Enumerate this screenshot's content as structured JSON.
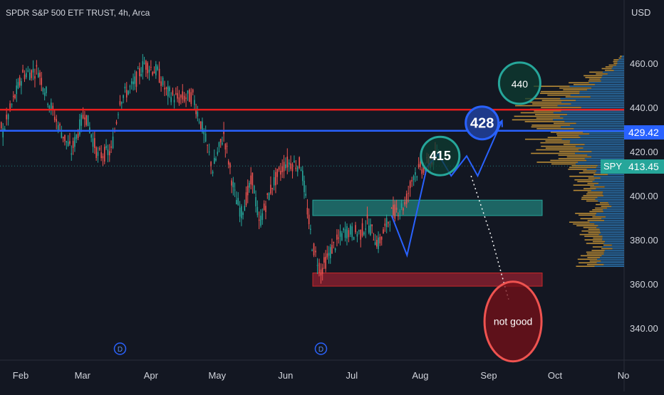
{
  "header": {
    "title": "SPDR S&P 500 ETF TRUST, 4h, Arca",
    "currency": "USD"
  },
  "price_badges": {
    "blue_level": "429.42",
    "last_price": "413.45",
    "symbol": "SPY"
  },
  "annotations": {
    "circle_440": "440",
    "circle_428": "428",
    "circle_415": "415",
    "not_good": "not good"
  },
  "dividend_marker": "D",
  "colors": {
    "background": "#131722",
    "up": "#26a69a",
    "down": "#ef5350",
    "red_line": "#e91e1e",
    "blue_line": "#2962ff",
    "profile_up": "#2f7fbf",
    "profile_down": "#d6a03a",
    "path": "#2962ff"
  },
  "chart_data": {
    "type": "candlestick",
    "title": "SPDR S&P 500 ETF TRUST, 4h, Arca",
    "ylabel": "USD",
    "ylim": [
      326,
      475
    ],
    "y_ticks": [
      340,
      360,
      380,
      400,
      420,
      440,
      460
    ],
    "y_tick_labels": [
      "340.00",
      "360.00",
      "380.00",
      "400.00",
      "420.00",
      "440.00",
      "460.00"
    ],
    "x_ticks": [
      "Feb",
      "Mar",
      "Apr",
      "May",
      "Jun",
      "Jul",
      "Aug",
      "Sep",
      "Oct",
      "No"
    ],
    "x_tick_dates": [
      "2022-02-01",
      "2022-03-01",
      "2022-04-01",
      "2022-05-01",
      "2022-06-01",
      "2022-07-01",
      "2022-08-01",
      "2022-09-01",
      "2022-10-01",
      "2022-11-01"
    ],
    "grid": false,
    "close_path": [
      [
        "2022-01-20",
        440
      ],
      [
        "2022-01-24",
        429
      ],
      [
        "2022-01-28",
        441
      ],
      [
        "2022-02-02",
        455
      ],
      [
        "2022-02-09",
        457
      ],
      [
        "2022-02-14",
        442
      ],
      [
        "2022-02-18",
        432
      ],
      [
        "2022-02-24",
        420
      ],
      [
        "2022-03-02",
        438
      ],
      [
        "2022-03-08",
        418
      ],
      [
        "2022-03-14",
        420
      ],
      [
        "2022-03-18",
        444
      ],
      [
        "2022-03-24",
        450
      ],
      [
        "2022-03-29",
        460
      ],
      [
        "2022-04-04",
        456
      ],
      [
        "2022-04-08",
        447
      ],
      [
        "2022-04-13",
        444
      ],
      [
        "2022-04-20",
        445
      ],
      [
        "2022-04-25",
        428
      ],
      [
        "2022-04-29",
        412
      ],
      [
        "2022-05-04",
        428
      ],
      [
        "2022-05-09",
        400
      ],
      [
        "2022-05-12",
        392
      ],
      [
        "2022-05-17",
        408
      ],
      [
        "2022-05-20",
        387
      ],
      [
        "2022-05-26",
        405
      ],
      [
        "2022-06-01",
        415
      ],
      [
        "2022-06-08",
        414
      ],
      [
        "2022-06-13",
        378
      ],
      [
        "2022-06-17",
        366
      ],
      [
        "2022-06-22",
        376
      ],
      [
        "2022-06-28",
        384
      ],
      [
        "2022-07-05",
        383
      ],
      [
        "2022-07-08",
        388
      ],
      [
        "2022-07-13",
        378
      ],
      [
        "2022-07-19",
        392
      ],
      [
        "2022-07-25",
        396
      ],
      [
        "2022-07-29",
        410
      ],
      [
        "2022-08-04",
        414
      ],
      [
        "2022-08-10",
        419
      ]
    ],
    "horizontal_levels": [
      {
        "color": "red",
        "value": 439
      },
      {
        "color": "blue",
        "value": 429.42
      }
    ],
    "zones": [
      {
        "kind": "support",
        "color": "teal",
        "from": "2022-06-13",
        "to": "2022-09-22",
        "low": 391,
        "high": 398
      },
      {
        "kind": "support",
        "color": "red",
        "from": "2022-06-13",
        "to": "2022-09-22",
        "low": 359,
        "high": 365
      }
    ],
    "projection_path": [
      [
        "2022-07-19",
        391
      ],
      [
        "2022-07-26",
        373
      ],
      [
        "2022-08-04",
        413
      ],
      [
        "2022-08-09",
        419
      ],
      [
        "2022-08-15",
        409
      ],
      [
        "2022-08-22",
        418
      ],
      [
        "2022-08-27",
        409
      ],
      [
        "2022-09-07",
        434
      ]
    ],
    "dotted_path": [
      [
        "2022-08-24",
        409
      ],
      [
        "2022-09-02",
        382
      ],
      [
        "2022-09-08",
        360
      ],
      [
        "2022-09-10",
        353
      ]
    ],
    "circles": [
      {
        "label": "415",
        "date": "2022-08-10",
        "price": 418,
        "color": "teal"
      },
      {
        "label": "428",
        "date": "2022-08-29",
        "price": 433,
        "color": "blue"
      },
      {
        "label": "440",
        "date": "2022-09-15",
        "price": 451,
        "color": "teal"
      },
      {
        "label": "not good",
        "date": "2022-09-12",
        "price": 343,
        "color": "red"
      }
    ],
    "dividends": [
      "2022-03-18",
      "2022-06-17"
    ],
    "last_price": 413.45,
    "volume_profile_range": [
      368,
      464
    ]
  }
}
